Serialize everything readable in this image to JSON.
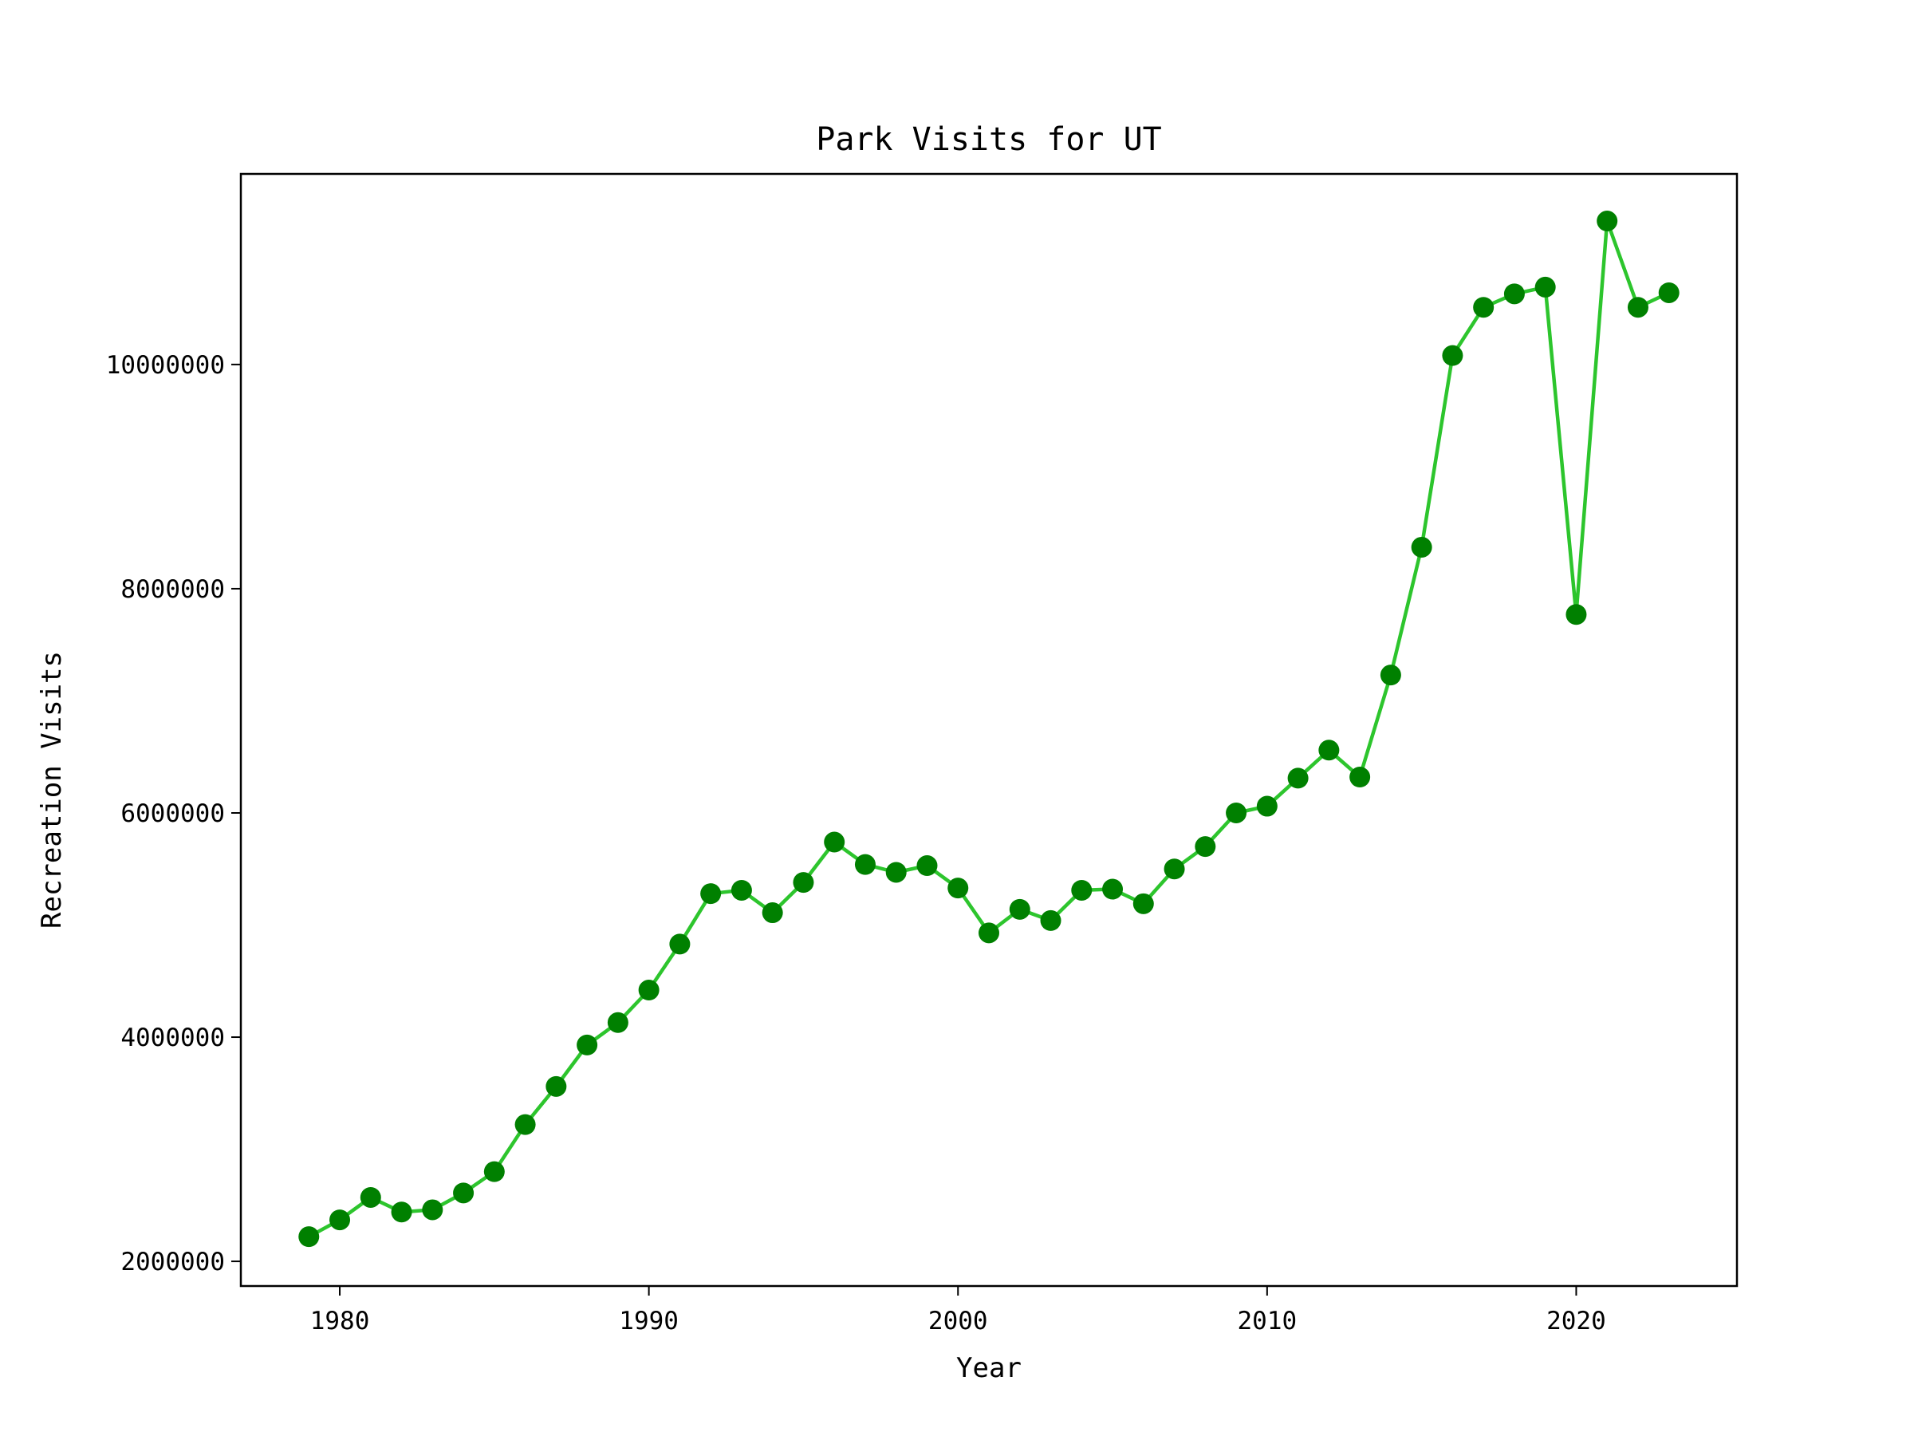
{
  "chart_data": {
    "type": "line",
    "title": "Park Visits for UT",
    "xlabel": "Year",
    "ylabel": "Recreation Visits",
    "xlim": [
      1976.8,
      2025.2
    ],
    "ylim": [
      1780000,
      11700000
    ],
    "xticks": [
      1980,
      1990,
      2000,
      2010,
      2020
    ],
    "yticks": [
      2000000,
      4000000,
      6000000,
      8000000,
      10000000
    ],
    "grid": false,
    "legend": "none",
    "line_color": "#2dc52d",
    "marker_color": "#008000",
    "series": [
      {
        "x": [
          1979,
          1980,
          1981,
          1982,
          1983,
          1984,
          1985,
          1986,
          1987,
          1988,
          1989,
          1990,
          1991,
          1992,
          1993,
          1994,
          1995,
          1996,
          1997,
          1998,
          1999,
          2000,
          2001,
          2002,
          2003,
          2004,
          2005,
          2006,
          2007,
          2008,
          2009,
          2010,
          2011,
          2012,
          2013,
          2014,
          2015,
          2016,
          2017,
          2018,
          2019,
          2020,
          2021,
          2022,
          2023
        ],
        "y": [
          2220000,
          2370000,
          2570000,
          2440000,
          2460000,
          2610000,
          2800000,
          3220000,
          3560000,
          3930000,
          4130000,
          4420000,
          4830000,
          5280000,
          5310000,
          5110000,
          5380000,
          5740000,
          5540000,
          5470000,
          5530000,
          5330000,
          4930000,
          5140000,
          5040000,
          5310000,
          5320000,
          5190000,
          5500000,
          5700000,
          6000000,
          6060000,
          6310000,
          6560000,
          6320000,
          7230000,
          8370000,
          10080000,
          10510000,
          10630000,
          10690000,
          7770000,
          11280000,
          10510000,
          10640000
        ]
      }
    ]
  }
}
